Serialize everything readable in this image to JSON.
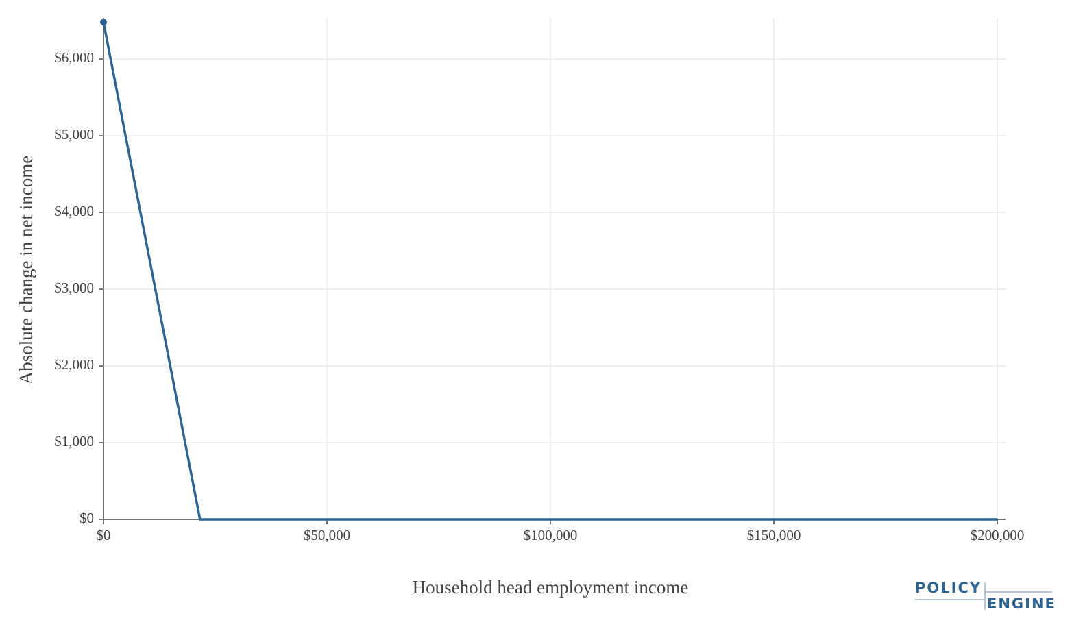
{
  "chart_data": {
    "type": "line",
    "x_label": "Household head employment income",
    "y_label": "Absolute change in net income",
    "x": [
      0,
      21600,
      200000
    ],
    "series": [
      {
        "color": "#2c6496",
        "values": [
          6480,
          0,
          0
        ]
      }
    ],
    "xlim": [
      0,
      201840
    ],
    "ylim": [
      0,
      6536
    ],
    "xticks": [
      {
        "value": 0,
        "label": "$0"
      },
      {
        "value": 50000,
        "label": "$50,000"
      },
      {
        "value": 100000,
        "label": "$100,000"
      },
      {
        "value": 150000,
        "label": "$150,000"
      },
      {
        "value": 200000,
        "label": "$200,000"
      }
    ],
    "yticks": [
      {
        "value": 0,
        "label": "$0"
      },
      {
        "value": 1000,
        "label": "$1,000"
      },
      {
        "value": 2000,
        "label": "$2,000"
      },
      {
        "value": 3000,
        "label": "$3,000"
      },
      {
        "value": 4000,
        "label": "$4,000"
      },
      {
        "value": 5000,
        "label": "$5,000"
      },
      {
        "value": 6000,
        "label": "$6,000"
      }
    ],
    "grid": true
  },
  "logo": {
    "top": "POLICY",
    "bottom": "ENGINE"
  }
}
